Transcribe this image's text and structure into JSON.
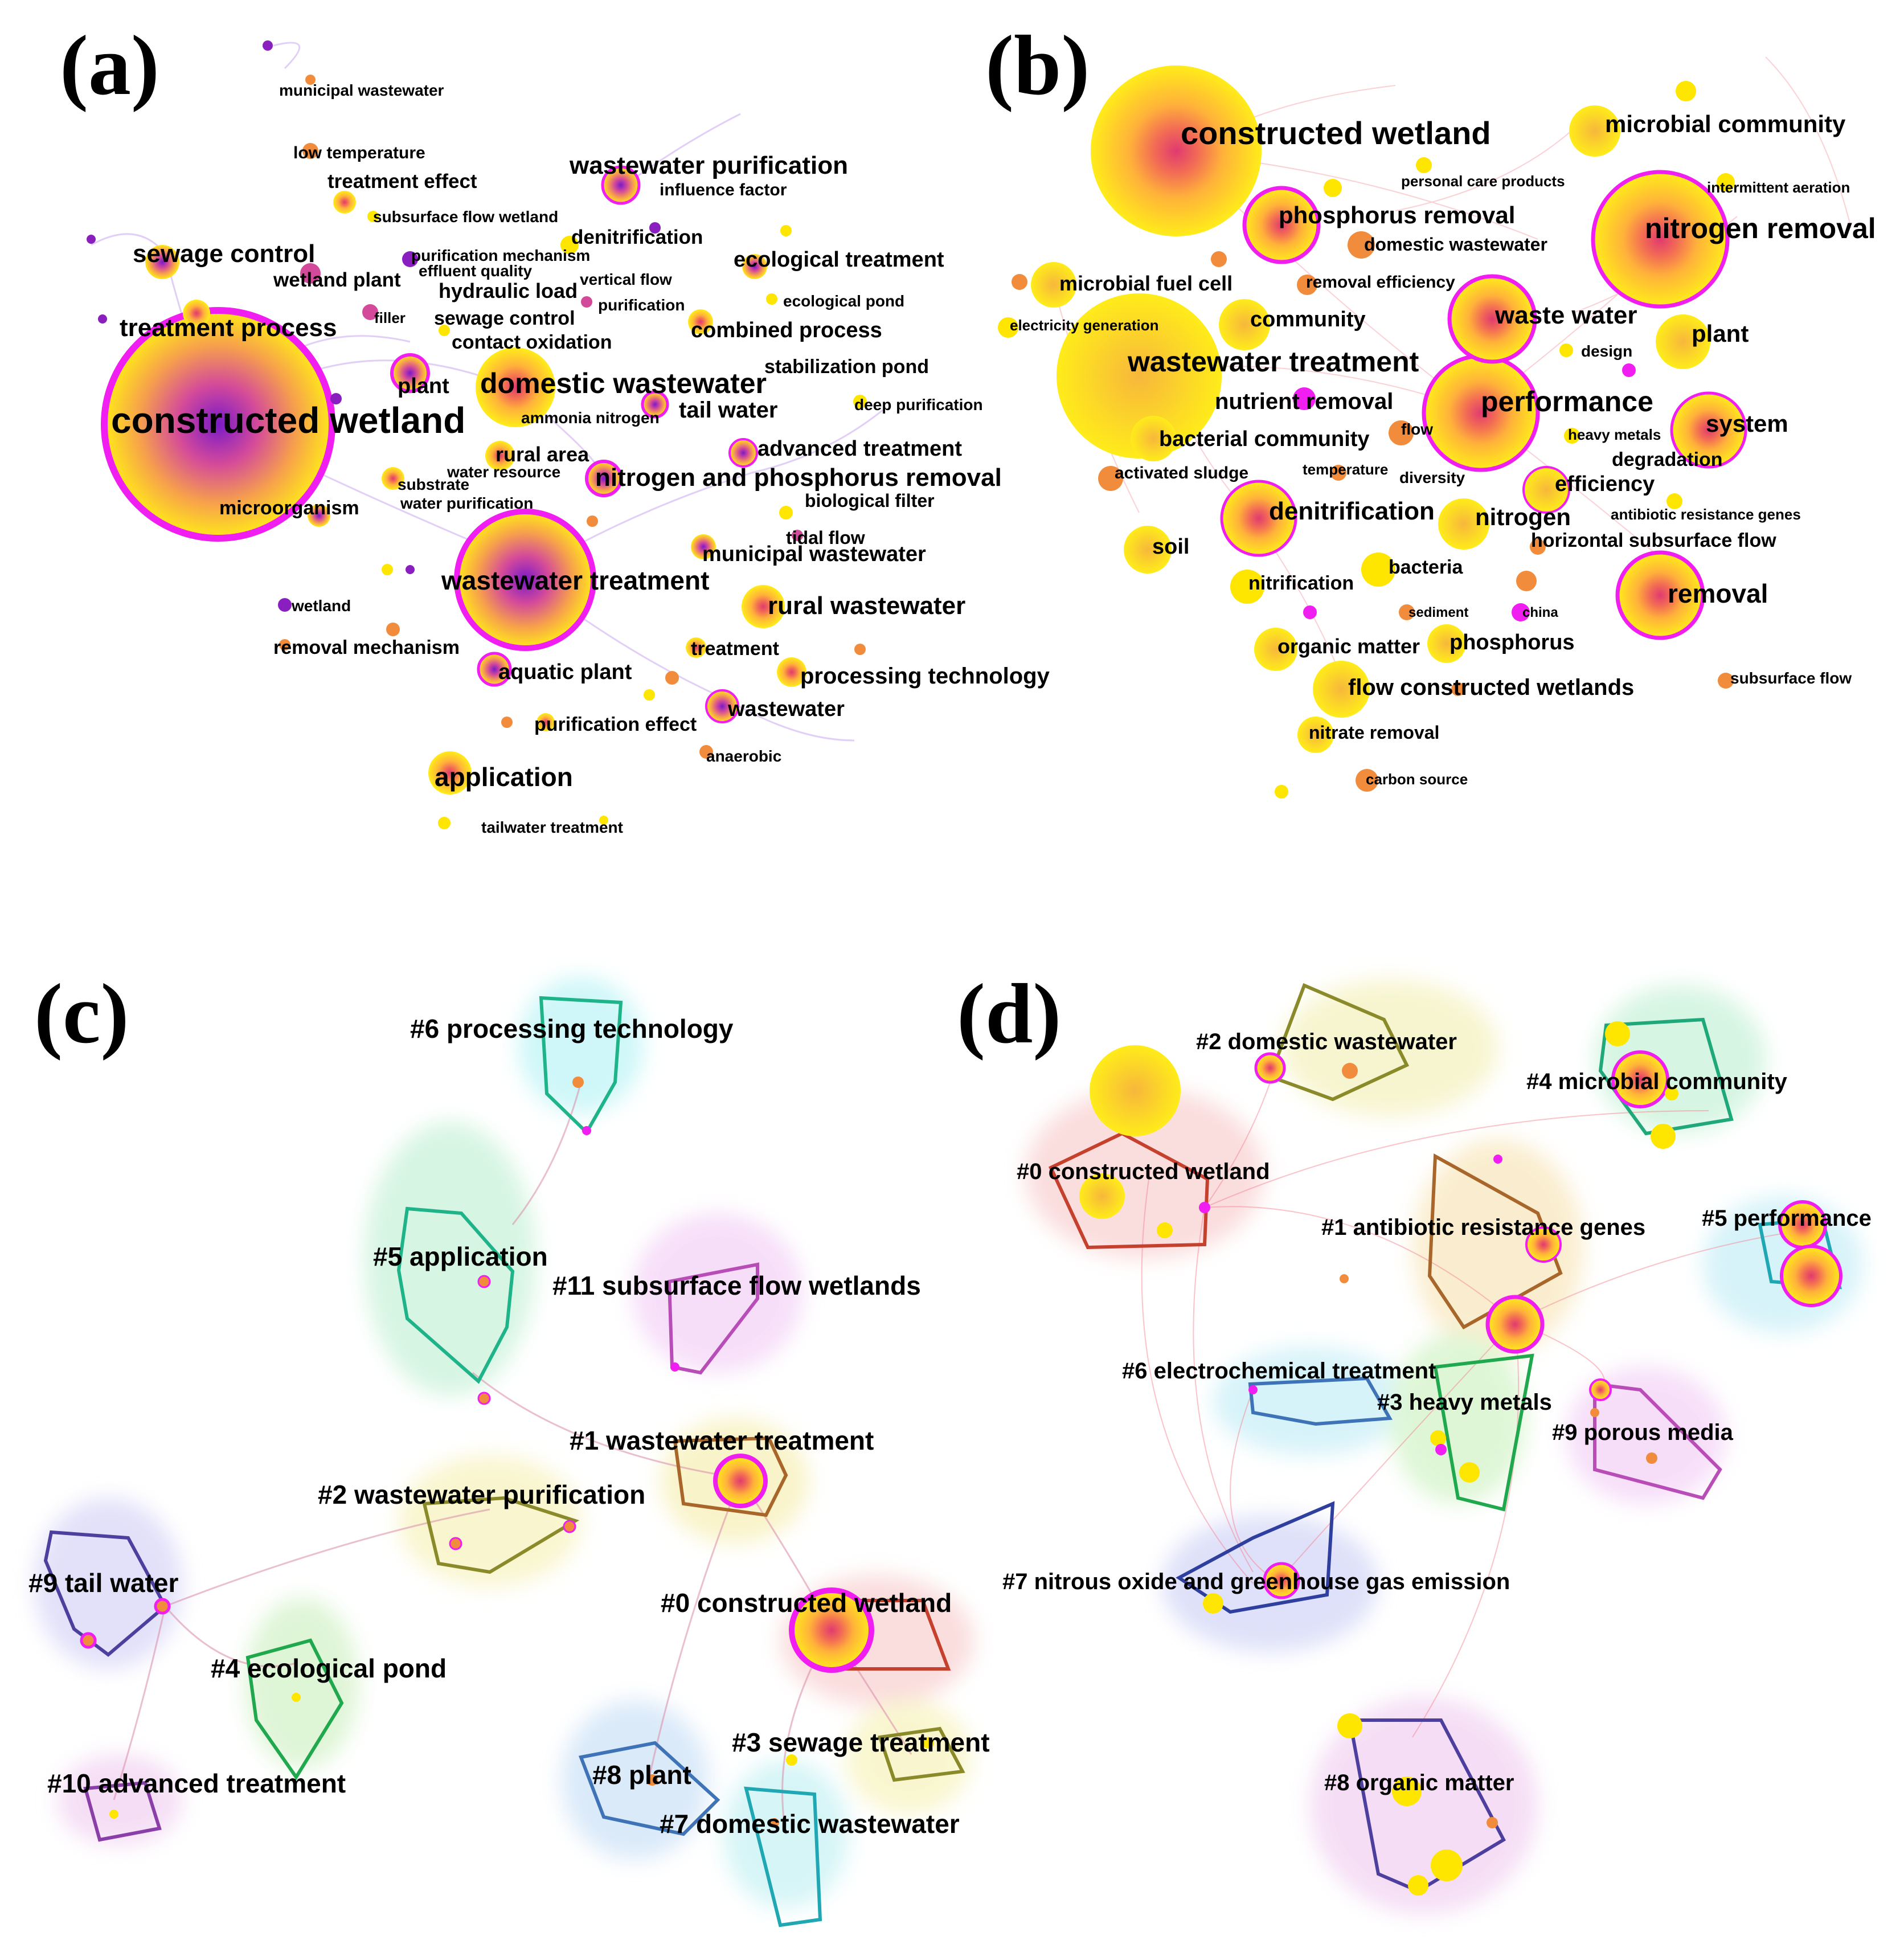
{
  "panels": {
    "a": {
      "label": "(a)",
      "keywords": [
        "municipal wastewater",
        "low temperature",
        "treatment effect",
        "subsurface flow wetland",
        "wastewater purification",
        "influence factor",
        "sewage control",
        "purification mechanism",
        "effluent quality",
        "denitrification",
        "ecological treatment",
        "wetland plant",
        "hydraulic load",
        "vertical flow",
        "ecological pond",
        "filler",
        "purification",
        "sewage control",
        "treatment process",
        "contact oxidation",
        "combined process",
        "stabilization pond",
        "plant",
        "domestic wastewater",
        "deep purification",
        "tail water",
        "ammonia nitrogen",
        "constructed wetland",
        "advanced treatment",
        "rural area",
        "water resource",
        "substrate",
        "nitrogen and phosphorus removal",
        "microorganism",
        "water purification",
        "biological filter",
        "tidal flow",
        "municipal wastewater",
        "wastewater treatment",
        "rural wastewater",
        "wetland",
        "removal mechanism",
        "treatment",
        "aquatic plant",
        "processing technology",
        "wastewater",
        "purification effect",
        "anaerobic",
        "application",
        "tailwater treatment"
      ]
    },
    "b": {
      "label": "(b)",
      "keywords": [
        "constructed wetland",
        "microbial community",
        "personal care products",
        "intermittent aeration",
        "phosphorus removal",
        "nitrogen removal",
        "domestic wastewater",
        "microbial fuel cell",
        "removal efficiency",
        "electricity generation",
        "community",
        "waste water",
        "plant",
        "design",
        "wastewater treatment",
        "nutrient removal",
        "performance",
        "system",
        "flow",
        "heavy metals",
        "bacterial community",
        "degradation",
        "activated sludge",
        "temperature",
        "diversity",
        "efficiency",
        "denitrification",
        "nitrogen",
        "antibiotic resistance genes",
        "soil",
        "horizontal subsurface flow",
        "nitrification",
        "bacteria",
        "removal",
        "sediment",
        "china",
        "organic matter",
        "phosphorus",
        "flow constructed wetlands",
        "subsurface flow",
        "nitrate removal",
        "carbon source"
      ]
    },
    "c": {
      "label": "(c)",
      "clusters": [
        "#6 processing technology",
        "#5 application",
        "#11 subsurface flow wetlands",
        "#1 wastewater treatment",
        "#2 wastewater purification",
        "#9 tail water",
        "#0 constructed wetland",
        "#4 ecological pond",
        "#3 sewage treatment",
        "#10 advanced treatment",
        "#8 plant",
        "#7 domestic wastewater"
      ]
    },
    "d": {
      "label": "(d)",
      "clusters": [
        "#2 domestic wastewater",
        "#4 microbial community",
        "#0 constructed wetland",
        "#1 antibiotic resistance genes",
        "#5 performance",
        "#6 electrochemical treatment",
        "#3 heavy metals",
        "#9 porous media",
        "#7 nitrous oxide and greenhouse gas emission",
        "#8 organic matter"
      ]
    }
  },
  "colors": {
    "node_yellow": "#ffe600",
    "node_orange": "#f08c3c",
    "node_purple": "#8a1fbf",
    "ring_magenta": "#f01ef0",
    "cluster_red": "#ff6b6b",
    "cluster_green": "#3cc86e",
    "cluster_cyan": "#4fd8e8",
    "cluster_yellow": "#f2ec7c",
    "cluster_pink": "#e88ef0",
    "cluster_blue": "#6c86e0"
  }
}
